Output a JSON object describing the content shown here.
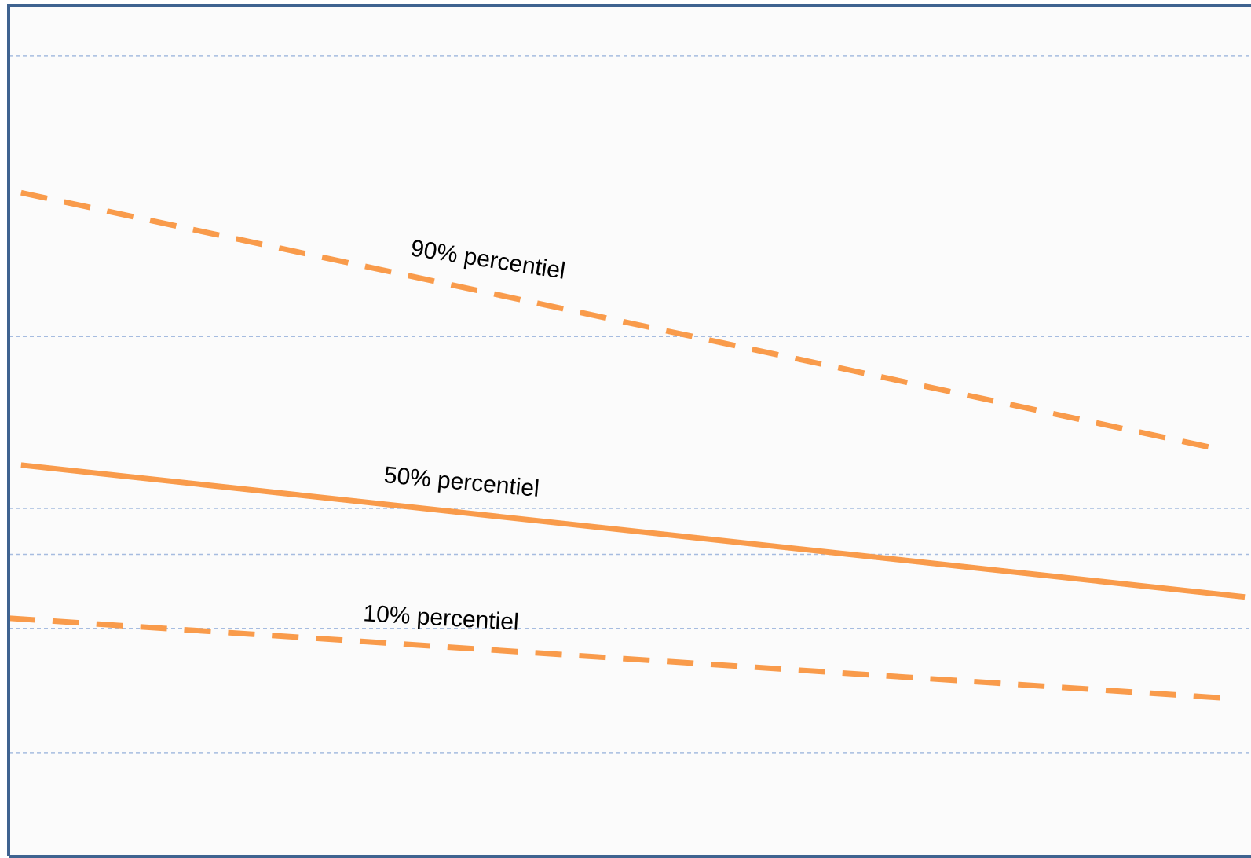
{
  "chart_data": {
    "type": "line",
    "title": "",
    "xlabel": "",
    "ylabel": "",
    "grid": true,
    "legend": "none",
    "xlim": [
      0,
      100
    ],
    "ylim": [
      0,
      100
    ],
    "gridlines_y": [
      12.2,
      26.8,
      35.5,
      40.9,
      61.1,
      94.1
    ],
    "series": [
      {
        "name": "90% percentiel",
        "style": "dashed",
        "x": [
          1,
          97
        ],
        "y": [
          78,
          48
        ]
      },
      {
        "name": "50% percentiel",
        "style": "solid",
        "x": [
          1,
          99.5
        ],
        "y": [
          46,
          30.5
        ]
      },
      {
        "name": "10% percentiel",
        "style": "dashed",
        "x": [
          0,
          98
        ],
        "y": [
          28,
          18.6
        ]
      }
    ]
  },
  "colors": {
    "series": "#f99b4b",
    "frame": "#3f6390",
    "grid": "#a6bce0",
    "plot_background": "#fbfbfb"
  }
}
